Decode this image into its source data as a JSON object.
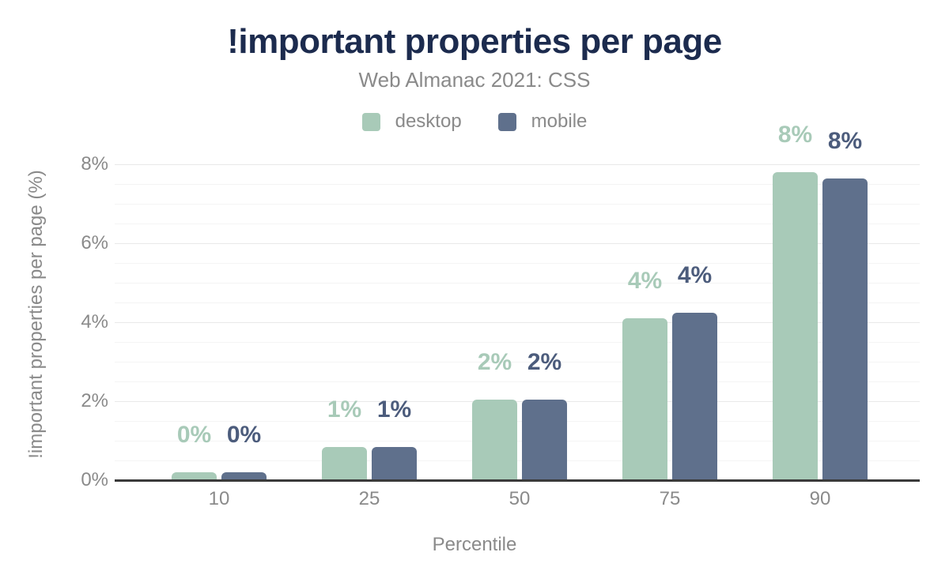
{
  "header": {
    "title": "!important properties per page",
    "subtitle": "Web Almanac 2021: CSS"
  },
  "chart_data": {
    "type": "bar",
    "title": "!important properties per page",
    "subtitle": "Web Almanac 2021: CSS",
    "xlabel": "Percentile",
    "ylabel": "!important properties per page (%)",
    "categories": [
      "10",
      "25",
      "50",
      "75",
      "90"
    ],
    "series": [
      {
        "name": "desktop",
        "color": "#a8cab8",
        "label_color": "#a8cab8",
        "values": [
          0.2,
          0.85,
          2.05,
          4.1,
          7.8
        ],
        "labels": [
          "0%",
          "1%",
          "2%",
          "4%",
          "8%"
        ]
      },
      {
        "name": "mobile",
        "color": "#5f708c",
        "label_color": "#4c5c7c",
        "values": [
          0.2,
          0.85,
          2.05,
          4.25,
          7.65
        ],
        "labels": [
          "0%",
          "1%",
          "2%",
          "4%",
          "8%"
        ]
      }
    ],
    "ylim": [
      0,
      8.5
    ],
    "yticks": [
      0,
      2,
      4,
      6,
      8
    ],
    "ytick_labels": [
      "0%",
      "2%",
      "4%",
      "6%",
      "8%"
    ],
    "minor_gridline_step": 0.5,
    "grid": true,
    "legend_position": "top"
  },
  "colors": {
    "title": "#1c2b4e",
    "text": "#8a8a8a",
    "grid_major": "#e9e9e9",
    "grid_minor": "#f4f4f4",
    "axis": "#3a3a3a",
    "background": "#ffffff"
  }
}
